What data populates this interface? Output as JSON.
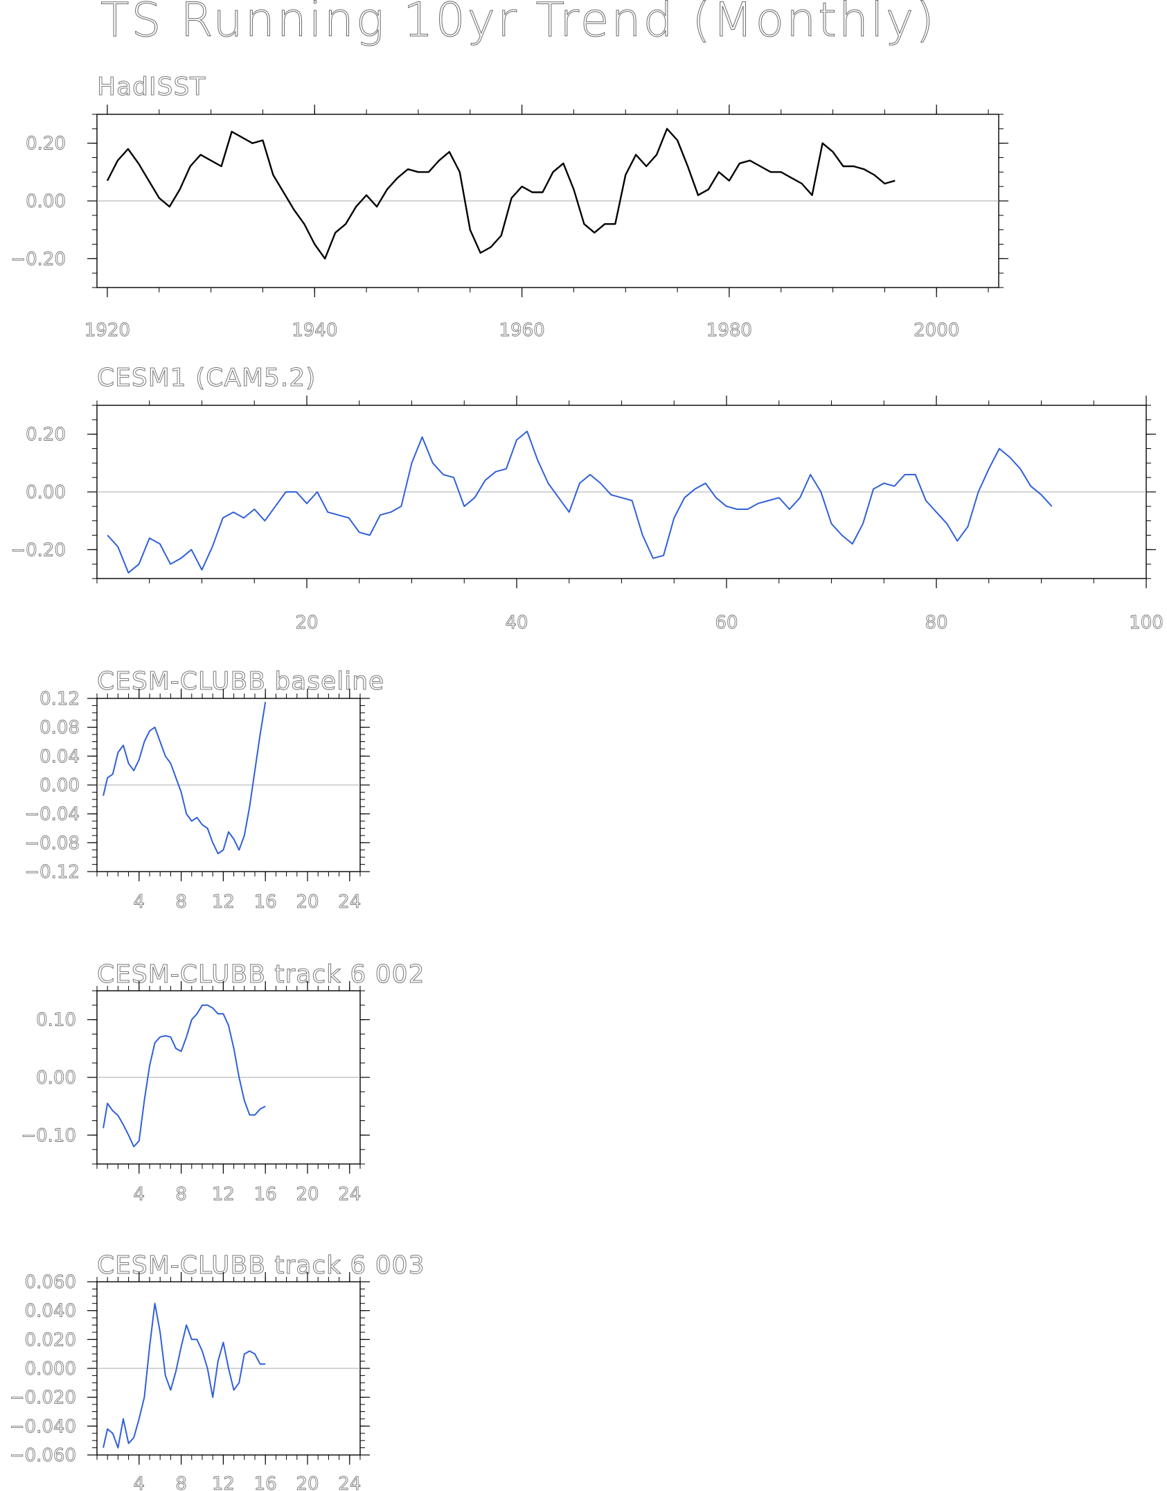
{
  "title": "TS Running 10yr Trend (Monthly)",
  "chart_data": [
    {
      "type": "line",
      "title": "HadISST",
      "color": "#000000",
      "xlim": [
        1919,
        2006
      ],
      "ylim": [
        -0.3,
        0.3
      ],
      "xticks": [
        1920,
        1940,
        1960,
        1980,
        2000
      ],
      "yticks": [
        -0.2,
        0.0,
        0.2
      ],
      "ytick_labels": [
        "-0.20",
        "0.00",
        "0.20"
      ],
      "x": [
        1920,
        1921,
        1922,
        1923,
        1924,
        1925,
        1926,
        1927,
        1928,
        1929,
        1930,
        1931,
        1932,
        1933,
        1934,
        1935,
        1936,
        1937,
        1938,
        1939,
        1940,
        1941,
        1942,
        1943,
        1944,
        1945,
        1946,
        1947,
        1948,
        1949,
        1950,
        1951,
        1952,
        1953,
        1954,
        1955,
        1956,
        1957,
        1958,
        1959,
        1960,
        1961,
        1962,
        1963,
        1964,
        1965,
        1966,
        1967,
        1968,
        1969,
        1970,
        1971,
        1972,
        1973,
        1974,
        1975,
        1976,
        1977,
        1978,
        1979,
        1980,
        1981,
        1982,
        1983,
        1984,
        1985,
        1986,
        1987,
        1988,
        1989,
        1990,
        1991,
        1992,
        1993,
        1994,
        1995,
        1996
      ],
      "y": [
        0.07,
        0.14,
        0.18,
        0.13,
        0.07,
        0.01,
        -0.02,
        0.04,
        0.12,
        0.16,
        0.14,
        0.12,
        0.24,
        0.22,
        0.2,
        0.21,
        0.09,
        0.03,
        -0.03,
        -0.08,
        -0.15,
        -0.2,
        -0.11,
        -0.08,
        -0.02,
        0.02,
        -0.02,
        0.04,
        0.08,
        0.11,
        0.1,
        0.1,
        0.14,
        0.17,
        0.1,
        -0.1,
        -0.18,
        -0.16,
        -0.12,
        0.01,
        0.05,
        0.03,
        0.03,
        0.1,
        0.13,
        0.04,
        -0.08,
        -0.11,
        -0.08,
        -0.08,
        0.09,
        0.16,
        0.12,
        0.16,
        0.25,
        0.21,
        0.12,
        0.02,
        0.04,
        0.1,
        0.07,
        0.13,
        0.14,
        0.12,
        0.1,
        0.1,
        0.08,
        0.06,
        0.02,
        0.2,
        0.17,
        0.12,
        0.12,
        0.11,
        0.09,
        0.06,
        0.07
      ]
    },
    {
      "type": "line",
      "title": "CESM1 (CAM5.2)",
      "color": "#2f5fd9",
      "xlim": [
        0,
        100
      ],
      "ylim": [
        -0.3,
        0.3
      ],
      "xticks": [
        20,
        40,
        60,
        80,
        100
      ],
      "yticks": [
        -0.2,
        0.0,
        0.2
      ],
      "ytick_labels": [
        "-0.20",
        "0.00",
        "0.20"
      ],
      "x": [
        1,
        2,
        3,
        4,
        5,
        6,
        7,
        8,
        9,
        10,
        11,
        12,
        13,
        14,
        15,
        16,
        17,
        18,
        19,
        20,
        21,
        22,
        23,
        24,
        25,
        26,
        27,
        28,
        29,
        30,
        31,
        32,
        33,
        34,
        35,
        36,
        37,
        38,
        39,
        40,
        41,
        42,
        43,
        44,
        45,
        46,
        47,
        48,
        49,
        50,
        51,
        52,
        53,
        54,
        55,
        56,
        57,
        58,
        59,
        60,
        61,
        62,
        63,
        64,
        65,
        66,
        67,
        68,
        69,
        70,
        71,
        72,
        73,
        74,
        75,
        76,
        77,
        78,
        79,
        80,
        81,
        82,
        83,
        84,
        85,
        86,
        87,
        88,
        89,
        90,
        91
      ],
      "y": [
        -0.15,
        -0.19,
        -0.28,
        -0.25,
        -0.16,
        -0.18,
        -0.25,
        -0.23,
        -0.2,
        -0.27,
        -0.19,
        -0.09,
        -0.07,
        -0.09,
        -0.06,
        -0.1,
        -0.05,
        0.0,
        0.0,
        -0.04,
        0.0,
        -0.07,
        -0.08,
        -0.09,
        -0.14,
        -0.15,
        -0.08,
        -0.07,
        -0.05,
        0.1,
        0.19,
        0.1,
        0.06,
        0.05,
        -0.05,
        -0.02,
        0.04,
        0.07,
        0.08,
        0.18,
        0.21,
        0.11,
        0.03,
        -0.02,
        -0.07,
        0.03,
        0.06,
        0.03,
        -0.01,
        -0.02,
        -0.03,
        -0.15,
        -0.23,
        -0.22,
        -0.09,
        -0.02,
        0.01,
        0.03,
        -0.02,
        -0.05,
        -0.06,
        -0.06,
        -0.04,
        -0.03,
        -0.02,
        -0.06,
        -0.02,
        0.06,
        0.0,
        -0.11,
        -0.15,
        -0.18,
        -0.11,
        0.01,
        0.03,
        0.02,
        0.06,
        0.06,
        -0.03,
        -0.07,
        -0.11,
        -0.17,
        -0.12,
        0.0,
        0.08,
        0.15,
        0.12,
        0.08,
        0.02,
        -0.01,
        -0.05
      ]
    },
    {
      "type": "line",
      "title": "CESM-CLUBB baseline",
      "color": "#2f5fd9",
      "xlim": [
        0,
        25
      ],
      "ylim": [
        -0.12,
        0.12
      ],
      "xticks": [
        4,
        8,
        12,
        16,
        20,
        24
      ],
      "yticks": [
        -0.12,
        -0.08,
        -0.04,
        0.0,
        0.04,
        0.08,
        0.12
      ],
      "ytick_labels": [
        "-0.12",
        "-0.08",
        "-0.04",
        "0.00",
        "0.04",
        "0.08",
        "0.12"
      ],
      "x": [
        0.6,
        1.0,
        1.5,
        2.0,
        2.5,
        3.0,
        3.5,
        4.0,
        4.5,
        5.0,
        5.5,
        6.0,
        6.5,
        7.0,
        7.5,
        8.0,
        8.5,
        9.0,
        9.5,
        10.0,
        10.5,
        11.0,
        11.5,
        12.0,
        12.5,
        13.0,
        13.5,
        14.0,
        14.5,
        15.0,
        15.5,
        16.0
      ],
      "y": [
        -0.015,
        0.01,
        0.015,
        0.045,
        0.055,
        0.03,
        0.02,
        0.035,
        0.06,
        0.075,
        0.08,
        0.06,
        0.04,
        0.03,
        0.01,
        -0.01,
        -0.04,
        -0.05,
        -0.045,
        -0.055,
        -0.06,
        -0.08,
        -0.095,
        -0.09,
        -0.065,
        -0.075,
        -0.09,
        -0.07,
        -0.03,
        0.02,
        0.07,
        0.115
      ]
    },
    {
      "type": "line",
      "title": "CESM-CLUBB track 6 002",
      "color": "#2f5fd9",
      "xlim": [
        0,
        25
      ],
      "ylim": [
        -0.15,
        0.15
      ],
      "xticks": [
        4,
        8,
        12,
        16,
        20,
        24
      ],
      "yticks": [
        -0.1,
        0.0,
        0.1
      ],
      "ytick_labels": [
        "-0.10",
        "0.00",
        "0.10"
      ],
      "x": [
        0.6,
        1.0,
        1.5,
        2.0,
        2.5,
        3.0,
        3.5,
        4.0,
        4.5,
        5.0,
        5.5,
        6.0,
        6.5,
        7.0,
        7.5,
        8.0,
        8.5,
        9.0,
        9.5,
        10.0,
        10.5,
        11.0,
        11.5,
        12.0,
        12.5,
        13.0,
        13.5,
        14.0,
        14.5,
        15.0,
        15.5,
        16.0
      ],
      "y": [
        -0.088,
        -0.045,
        -0.058,
        -0.066,
        -0.082,
        -0.1,
        -0.12,
        -0.11,
        -0.04,
        0.02,
        0.06,
        0.07,
        0.072,
        0.07,
        0.05,
        0.045,
        0.07,
        0.1,
        0.11,
        0.125,
        0.125,
        0.12,
        0.11,
        0.11,
        0.09,
        0.05,
        0.0,
        -0.04,
        -0.065,
        -0.065,
        -0.055,
        -0.05
      ]
    },
    {
      "type": "line",
      "title": "CESM-CLUBB track 6 003",
      "color": "#2f5fd9",
      "xlim": [
        0,
        25
      ],
      "ylim": [
        -0.06,
        0.06
      ],
      "xticks": [
        4,
        8,
        12,
        16,
        20,
        24
      ],
      "yticks": [
        -0.06,
        -0.04,
        -0.02,
        0.0,
        0.02,
        0.04,
        0.06
      ],
      "ytick_labels": [
        "-0.060",
        "-0.040",
        "-0.020",
        "0.000",
        "0.020",
        "0.040",
        "0.060"
      ],
      "x": [
        0.6,
        1.0,
        1.5,
        2.0,
        2.5,
        3.0,
        3.5,
        4.0,
        4.5,
        5.0,
        5.5,
        6.0,
        6.5,
        7.0,
        7.5,
        8.0,
        8.5,
        9.0,
        9.5,
        10.0,
        10.5,
        11.0,
        11.5,
        12.0,
        12.5,
        13.0,
        13.5,
        14.0,
        14.5,
        15.0,
        15.5,
        16.0
      ],
      "y": [
        -0.055,
        -0.042,
        -0.045,
        -0.055,
        -0.035,
        -0.052,
        -0.048,
        -0.035,
        -0.02,
        0.015,
        0.045,
        0.025,
        -0.005,
        -0.015,
        -0.002,
        0.015,
        0.03,
        0.02,
        0.02,
        0.012,
        0.0,
        -0.02,
        0.005,
        0.018,
        0.0,
        -0.015,
        -0.01,
        0.01,
        0.012,
        0.01,
        0.003,
        0.003
      ]
    }
  ]
}
